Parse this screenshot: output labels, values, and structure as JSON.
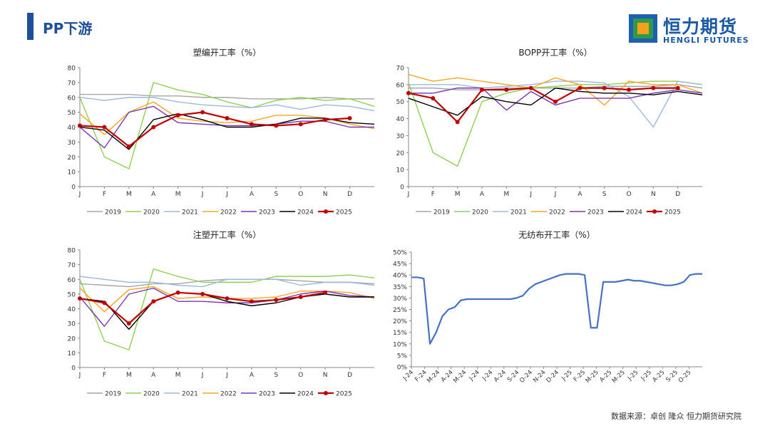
{
  "header": {
    "title": "PP下游"
  },
  "logo": {
    "name_cn": "恒力期货",
    "name_en": "HENGLI FUTURES"
  },
  "footer": {
    "source": "数据来源：卓创  隆众  恒力期货研究院"
  },
  "colors": {
    "accent": "#1f4e9a",
    "series": {
      "2019": "#a6a6a6",
      "2020": "#8fd14f",
      "2021": "#9db8e0",
      "2022": "#f6a623",
      "2023": "#7b35b5",
      "2024": "#000000",
      "2025": "#c00000"
    },
    "line_2025_marker": "#c00000",
    "single_line": "#4472c4"
  },
  "chart_data": [
    {
      "id": "c1",
      "type": "line",
      "title": "塑编开工率（%）",
      "ylim": [
        0,
        80
      ],
      "yticks": [
        "0",
        "10",
        "20",
        "30",
        "40",
        "50",
        "60",
        "70",
        "80"
      ],
      "xticks": [
        "J",
        "F",
        "M",
        "A",
        "M",
        "J",
        "J",
        "A",
        "S",
        "O",
        "N",
        "D"
      ],
      "legend": [
        "2019",
        "2020",
        "2021",
        "2022",
        "2023",
        "2024",
        "2025"
      ],
      "series": [
        {
          "name": "2019",
          "values": [
            62,
            62,
            62,
            61,
            61,
            60,
            60,
            59,
            59,
            59,
            60,
            59,
            59
          ]
        },
        {
          "name": "2020",
          "values": [
            60,
            20,
            12,
            70,
            65,
            62,
            57,
            53,
            58,
            60,
            58,
            59,
            54
          ]
        },
        {
          "name": "2021",
          "values": [
            60,
            58,
            60,
            60,
            57,
            55,
            54,
            53,
            55,
            52,
            55,
            54,
            51
          ]
        },
        {
          "name": "2022",
          "values": [
            49,
            35,
            50,
            57,
            46,
            44,
            43,
            44,
            48,
            48,
            46,
            42,
            39
          ]
        },
        {
          "name": "2023",
          "values": [
            40,
            26,
            50,
            54,
            43,
            42,
            41,
            41,
            42,
            44,
            44,
            40,
            40
          ]
        },
        {
          "name": "2024",
          "values": [
            40,
            38,
            25,
            45,
            49,
            45,
            40,
            40,
            42,
            46,
            46,
            43,
            42
          ]
        },
        {
          "name": "2025",
          "values": [
            41,
            40,
            27,
            40,
            48,
            50,
            46,
            42,
            41,
            42,
            45,
            46,
            null
          ]
        }
      ]
    },
    {
      "id": "c2",
      "type": "line",
      "title": "BOPP开工率（%）",
      "ylim": [
        0,
        70
      ],
      "yticks": [
        "0",
        "10",
        "20",
        "30",
        "40",
        "50",
        "60",
        "70"
      ],
      "xticks": [
        "J",
        "F",
        "M",
        "A",
        "M",
        "J",
        "J",
        "A",
        "S",
        "O",
        "N",
        "D"
      ],
      "legend": [
        "2019",
        "2020",
        "2021",
        "2022",
        "2023",
        "2024",
        "2025"
      ],
      "series": [
        {
          "name": "2019",
          "values": [
            58,
            58,
            57,
            57,
            58,
            58,
            58,
            58,
            59,
            59,
            59,
            60,
            58
          ]
        },
        {
          "name": "2020",
          "values": [
            61,
            20,
            12,
            50,
            55,
            58,
            59,
            60,
            60,
            61,
            62,
            62,
            60
          ]
        },
        {
          "name": "2021",
          "values": [
            60,
            60,
            60,
            58,
            59,
            60,
            62,
            62,
            61,
            53,
            35,
            62,
            60
          ]
        },
        {
          "name": "2022",
          "values": [
            66,
            62,
            64,
            62,
            60,
            58,
            64,
            60,
            48,
            62,
            60,
            60,
            55
          ]
        },
        {
          "name": "2023",
          "values": [
            55,
            55,
            58,
            58,
            45,
            56,
            48,
            52,
            52,
            52,
            55,
            57,
            55
          ]
        },
        {
          "name": "2024",
          "values": [
            52,
            47,
            42,
            53,
            50,
            48,
            58,
            56,
            55,
            55,
            54,
            56,
            54
          ]
        },
        {
          "name": "2025",
          "values": [
            55,
            52,
            38,
            57,
            57,
            58,
            50,
            58,
            58,
            57,
            58,
            58,
            null
          ]
        }
      ]
    },
    {
      "id": "c3",
      "type": "line",
      "title": "注塑开工率（%）",
      "ylim": [
        0,
        80
      ],
      "yticks": [
        "0",
        "10",
        "20",
        "30",
        "40",
        "50",
        "60",
        "70",
        "80"
      ],
      "xticks": [
        "J",
        "F",
        "M",
        "A",
        "M",
        "J",
        "J",
        "A",
        "S",
        "O",
        "N",
        "D"
      ],
      "legend": [
        "2019",
        "2020",
        "2021",
        "2022",
        "2023",
        "2024",
        "2025"
      ],
      "series": [
        {
          "name": "2019",
          "values": [
            57,
            56,
            55,
            57,
            57,
            59,
            60,
            60,
            60,
            59,
            58,
            58,
            57
          ]
        },
        {
          "name": "2020",
          "values": [
            60,
            18,
            12,
            67,
            62,
            58,
            58,
            58,
            62,
            62,
            62,
            63,
            61
          ]
        },
        {
          "name": "2021",
          "values": [
            62,
            60,
            58,
            58,
            56,
            55,
            60,
            60,
            60,
            56,
            58,
            58,
            56
          ]
        },
        {
          "name": "2022",
          "values": [
            54,
            38,
            53,
            55,
            47,
            48,
            47,
            47,
            48,
            52,
            52,
            51,
            47
          ]
        },
        {
          "name": "2023",
          "values": [
            48,
            28,
            50,
            54,
            45,
            45,
            44,
            44,
            46,
            50,
            52,
            49,
            48
          ]
        },
        {
          "name": "2024",
          "values": [
            47,
            45,
            26,
            45,
            51,
            50,
            45,
            42,
            44,
            48,
            50,
            48,
            48
          ]
        },
        {
          "name": "2025",
          "values": [
            47,
            44,
            30,
            45,
            51,
            50,
            47,
            45,
            46,
            48,
            51,
            null,
            null
          ]
        }
      ]
    },
    {
      "id": "c4",
      "type": "line",
      "title": "无纺布开工率（%）",
      "ylim": [
        0,
        50
      ],
      "yticks": [
        "0%",
        "5%",
        "10%",
        "15%",
        "20%",
        "25%",
        "30%",
        "35%",
        "40%",
        "45%",
        "50%"
      ],
      "xticks": [
        "J-24",
        "F-24",
        "M-24",
        "A-24",
        "M-24",
        "J-24",
        "J-24",
        "A-24",
        "S-24",
        "O-24",
        "N-24",
        "D-24",
        "J-25",
        "F-25",
        "M-25",
        "A-25",
        "M-25",
        "J-25",
        "J-25",
        "A-25",
        "S-25",
        "O-25"
      ],
      "series": [
        {
          "name": "",
          "values": [
            39,
            39,
            38.5,
            10,
            15,
            22,
            25,
            26,
            29,
            29.5,
            29.5,
            29.5,
            29.5,
            29.5,
            29.5,
            29.5,
            29.5,
            30,
            31,
            34,
            36,
            37,
            38,
            39,
            40,
            40.5,
            40.5,
            40.5,
            40,
            17,
            17,
            37,
            37,
            37,
            37.5,
            38,
            37.5,
            37.5,
            37,
            36.5,
            36,
            35.5,
            35.5,
            36,
            37,
            40,
            40.5,
            40.5
          ]
        }
      ]
    }
  ]
}
